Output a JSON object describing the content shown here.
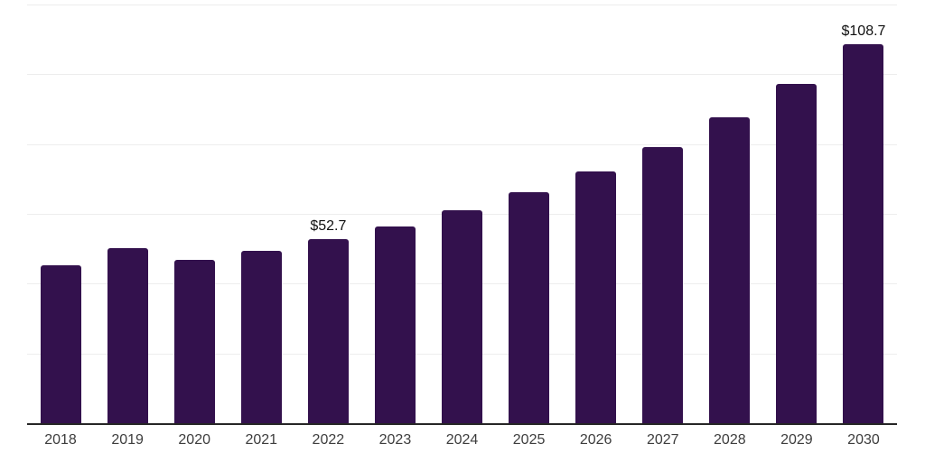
{
  "chart_data": {
    "type": "bar",
    "title": "",
    "xlabel": "",
    "ylabel": "",
    "categories": [
      "2018",
      "2019",
      "2020",
      "2021",
      "2022",
      "2023",
      "2024",
      "2025",
      "2026",
      "2027",
      "2028",
      "2029",
      "2030"
    ],
    "values": [
      45.2,
      50.3,
      46.9,
      49.5,
      52.7,
      56.3,
      61.0,
      66.2,
      72.1,
      79.2,
      87.7,
      97.2,
      108.7
    ],
    "value_labels": {
      "2022": "$52.7",
      "2030": "$108.7"
    },
    "ylim": [
      0,
      120
    ],
    "gridline_step": 20,
    "grid": true,
    "legend": "none",
    "colors": {
      "bar": "#33114d",
      "gridline": "#ededed",
      "axis_line": "#262626",
      "tick_label": "#3d3d3d",
      "value_label": "#111111",
      "background": "#ffffff"
    }
  }
}
